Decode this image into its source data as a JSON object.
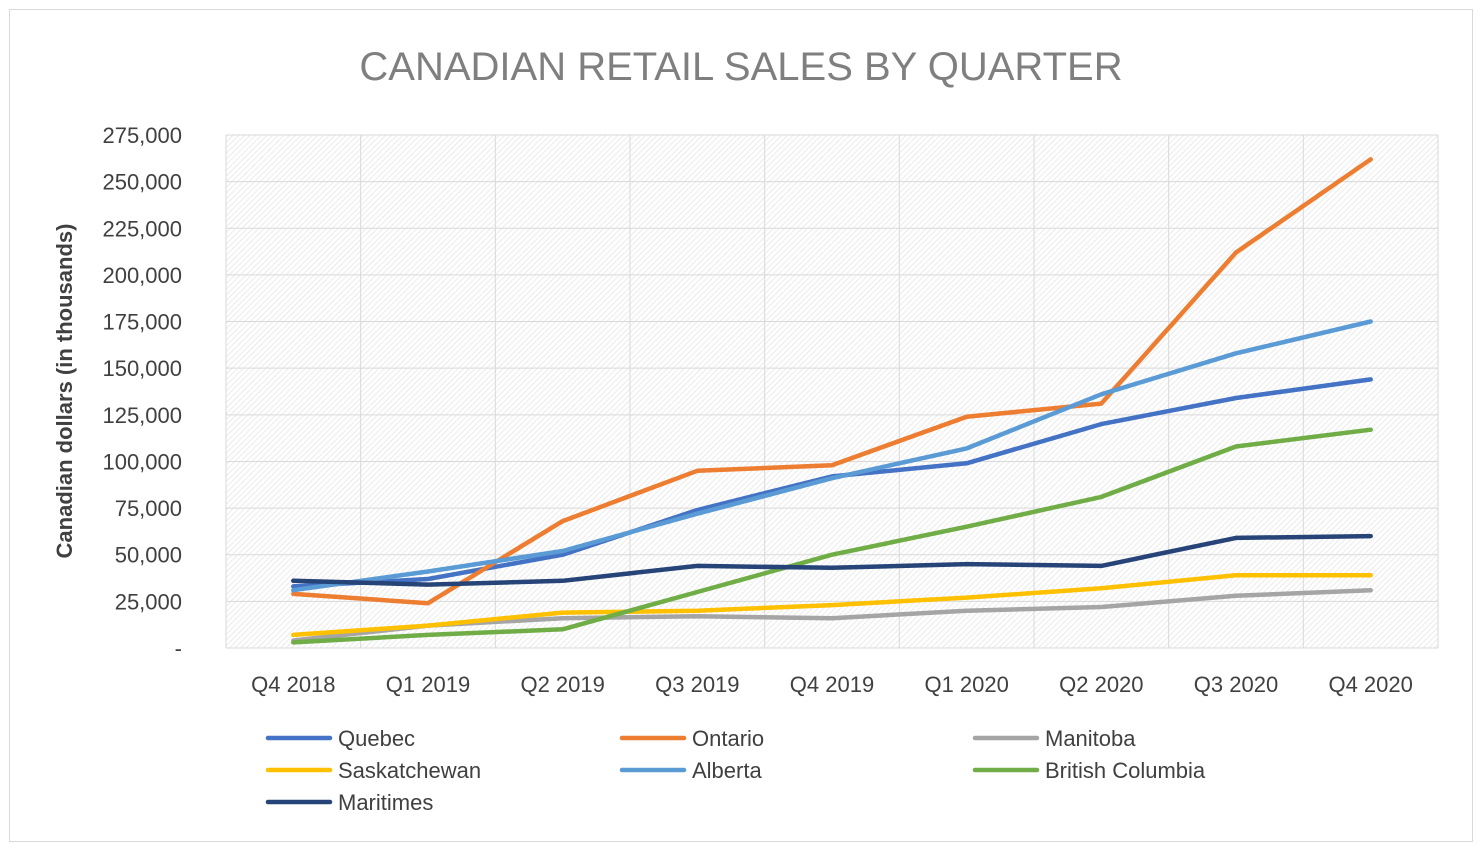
{
  "chart_data": {
    "type": "line",
    "title": "CANADIAN RETAIL SALES BY QUARTER",
    "xlabel": "",
    "ylabel": "Canadian dollars (in thousands)",
    "ylim": [
      0,
      275000
    ],
    "yticks": [
      0,
      25000,
      50000,
      75000,
      100000,
      125000,
      150000,
      175000,
      200000,
      225000,
      250000,
      275000
    ],
    "ytick_labels": [
      "-",
      "25,000",
      "50,000",
      "75,000",
      "100,000",
      "125,000",
      "150,000",
      "175,000",
      "200,000",
      "225,000",
      "250,000",
      "275,000"
    ],
    "categories": [
      "Q4 2018",
      "Q1 2019",
      "Q2 2019",
      "Q3 2019",
      "Q4 2019",
      "Q1 2020",
      "Q2 2020",
      "Q3 2020",
      "Q4 2020"
    ],
    "grid": true,
    "legend_position": "bottom",
    "series": [
      {
        "name": "Quebec",
        "color": "#4472C4",
        "values": [
          33000,
          37000,
          50000,
          74000,
          92000,
          99000,
          120000,
          134000,
          144000
        ]
      },
      {
        "name": "Ontario",
        "color": "#ED7D31",
        "values": [
          29000,
          24000,
          68000,
          95000,
          98000,
          124000,
          131000,
          212000,
          262000
        ]
      },
      {
        "name": "Manitoba",
        "color": "#A5A5A5",
        "values": [
          4000,
          12000,
          16000,
          17000,
          16000,
          20000,
          22000,
          28000,
          31000
        ]
      },
      {
        "name": "Saskatchewan",
        "color": "#FFC000",
        "values": [
          7000,
          12000,
          19000,
          20000,
          23000,
          27000,
          32000,
          39000,
          39000
        ]
      },
      {
        "name": "Alberta",
        "color": "#5B9BD5",
        "values": [
          31000,
          41000,
          52000,
          72000,
          91000,
          107000,
          136000,
          158000,
          175000
        ]
      },
      {
        "name": "British Columbia",
        "color": "#70AD47",
        "values": [
          3000,
          7000,
          10000,
          30000,
          50000,
          65000,
          81000,
          108000,
          117000
        ]
      },
      {
        "name": "Maritimes",
        "color": "#264478",
        "values": [
          36000,
          34000,
          36000,
          44000,
          43000,
          45000,
          44000,
          59000,
          60000
        ]
      }
    ]
  }
}
